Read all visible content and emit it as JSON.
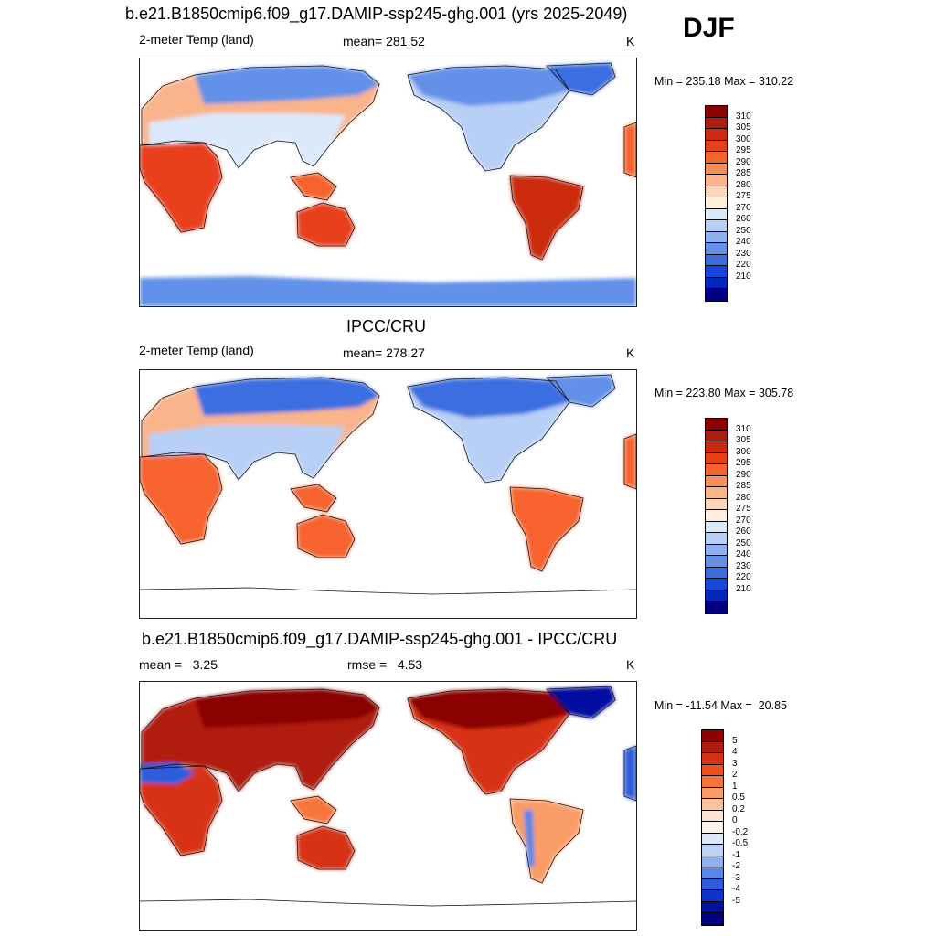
{
  "season": "DJF",
  "panels": [
    {
      "title": "b.e21.B1850cmip6.f09_g17.DAMIP-ssp245-ghg.001 (yrs 2025-2049)",
      "left_label": "2-meter Temp (land)",
      "center_label": "mean= 281.52",
      "right_label": "K",
      "minmax": "Min = 235.18 Max = 310.22",
      "scale": "abs",
      "colorbar_labels": [
        "310",
        "305",
        "300",
        "295",
        "290",
        "285",
        "280",
        "275",
        "270",
        "260",
        "250",
        "240",
        "230",
        "220",
        "210"
      ]
    },
    {
      "title": "IPCC/CRU",
      "left_label": "2-meter Temp (land)",
      "center_label": "mean= 278.27",
      "right_label": "K",
      "minmax": "Min = 223.80 Max = 305.78",
      "scale": "abs",
      "colorbar_labels": [
        "310",
        "305",
        "300",
        "295",
        "290",
        "285",
        "280",
        "275",
        "270",
        "260",
        "250",
        "240",
        "230",
        "220",
        "210"
      ]
    },
    {
      "title": "b.e21.B1850cmip6.f09_g17.DAMIP-ssp245-ghg.001 - IPCC/CRU",
      "left_label": "mean =   3.25",
      "center_label": "rmse =   4.53",
      "right_label": "K",
      "minmax": "Min = -11.54 Max =  20.85",
      "scale": "diff",
      "colorbar_labels": [
        "5",
        "4",
        "3",
        "2",
        "1",
        "0.5",
        "0.2",
        "0",
        "-0.2",
        "-0.5",
        "-1",
        "-2",
        "-3",
        "-4",
        "-5"
      ]
    }
  ],
  "colors": {
    "abs": [
      "#8b0000",
      "#b01c0c",
      "#cc2a0e",
      "#e8401a",
      "#f6642e",
      "#f78e5a",
      "#f9b48c",
      "#fcd6b8",
      "#fdeedd",
      "#dce9fb",
      "#b8cff6",
      "#8fb1ef",
      "#6490e8",
      "#3a6ee0",
      "#1746d6",
      "#0524b8",
      "#000080"
    ],
    "diff": [
      "#8b0000",
      "#b01c0c",
      "#d83214",
      "#f0501f",
      "#f8743a",
      "#fa9c68",
      "#fcc29c",
      "#fde3cf",
      "#fdf3ea",
      "#dde9fb",
      "#bcd2f6",
      "#8fb1ef",
      "#5a86e6",
      "#2e5cdb",
      "#0d33c8",
      "#0010a0",
      "#000080"
    ]
  },
  "chart_data": [
    {
      "type": "heatmap",
      "title": "b.e21.B1850cmip6.f09_g17.DAMIP-ssp245-ghg.001 (yrs 2025-2049)",
      "variable": "2-meter Temp (land)",
      "season": "DJF",
      "units": "K",
      "mean": 281.52,
      "min": 235.18,
      "max": 310.22,
      "colorbar_levels": [
        210,
        220,
        230,
        240,
        250,
        260,
        270,
        275,
        280,
        285,
        290,
        295,
        300,
        305,
        310
      ]
    },
    {
      "type": "heatmap",
      "title": "IPCC/CRU",
      "variable": "2-meter Temp (land)",
      "season": "DJF",
      "units": "K",
      "mean": 278.27,
      "min": 223.8,
      "max": 305.78,
      "colorbar_levels": [
        210,
        220,
        230,
        240,
        250,
        260,
        270,
        275,
        280,
        285,
        290,
        295,
        300,
        305,
        310
      ]
    },
    {
      "type": "heatmap",
      "title": "b.e21.B1850cmip6.f09_g17.DAMIP-ssp245-ghg.001 - IPCC/CRU",
      "season": "DJF",
      "units": "K",
      "mean": 3.25,
      "rmse": 4.53,
      "min": -11.54,
      "max": 20.85,
      "colorbar_levels": [
        -5,
        -4,
        -3,
        -2,
        -1,
        -0.5,
        -0.2,
        0,
        0.2,
        0.5,
        1,
        2,
        3,
        4,
        5
      ]
    }
  ]
}
